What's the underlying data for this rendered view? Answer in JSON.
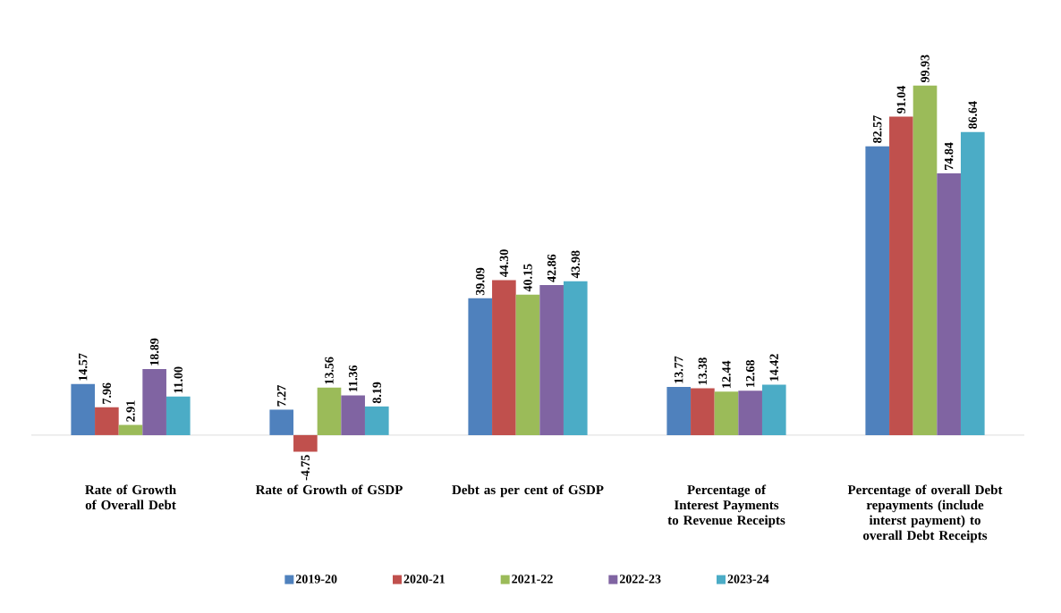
{
  "chart_data": {
    "type": "bar",
    "categories": [
      "Rate of Growth of Overall Debt",
      "Rate of Growth of GSDP",
      "Debt as per cent of GSDP",
      "Percentage of Interest Payments to Revenue Receipts",
      "Percentage of overall Debt repayments (include interst payment) to overall Debt Receipts"
    ],
    "series": [
      {
        "name": "2019-20",
        "color": "#4f81bd",
        "values": [
          14.57,
          7.27,
          39.09,
          13.77,
          82.57
        ],
        "value_labels": [
          "14.57",
          "7.27",
          "39.09",
          "13.77",
          "82.57"
        ]
      },
      {
        "name": "2020-21",
        "color": "#c0504d",
        "values": [
          7.96,
          -4.75,
          44.3,
          13.38,
          91.04
        ],
        "value_labels": [
          "7.96",
          "-4.75",
          "44.30",
          "13.38",
          "91.04"
        ]
      },
      {
        "name": "2021-22",
        "color": "#9bbb59",
        "values": [
          2.91,
          13.56,
          40.15,
          12.44,
          99.93
        ],
        "value_labels": [
          "2.91",
          "13.56",
          "40.15",
          "12.44",
          "99.93"
        ]
      },
      {
        "name": "2022-23",
        "color": "#8064a2",
        "values": [
          18.89,
          11.36,
          42.86,
          12.68,
          74.84
        ],
        "value_labels": [
          "18.89",
          "11.36",
          "42.86",
          "12.68",
          "74.84"
        ]
      },
      {
        "name": "2023-24",
        "color": "#4bacc6",
        "values": [
          11.0,
          8.19,
          43.98,
          14.42,
          86.64
        ],
        "value_labels": [
          "11.00",
          "8.19",
          "43.98",
          "14.42",
          "86.64"
        ]
      }
    ],
    "legend": "bottom"
  }
}
